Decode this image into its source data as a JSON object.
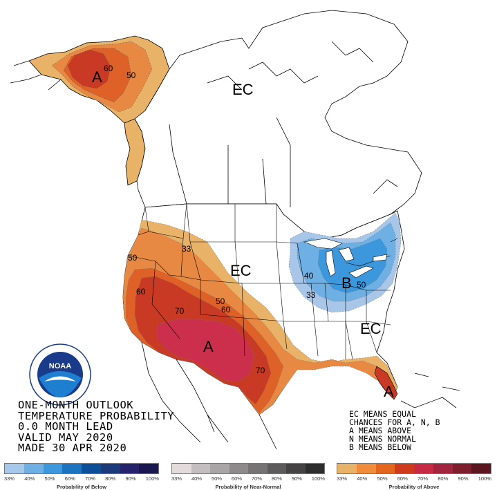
{
  "title_lines": [
    "ONE-MONTH OUTLOOK",
    "TEMPERATURE PROBABILITY",
    "0.0 MONTH LEAD",
    "VALID MAY 2020",
    "MADE 30 APR 2020"
  ],
  "legend_notes": [
    "EC MEANS EQUAL",
    "CHANCES FOR A, N, B",
    "A MEANS ABOVE",
    "N MEANS NORMAL",
    "B MEANS BELOW"
  ],
  "map_labels": {
    "alaska_A": "A",
    "alaska_60": "60",
    "alaska_50": "50",
    "canada_EC": "EC",
    "plains_EC": "EC",
    "southeast_EC": "EC",
    "west_33": "33",
    "west_50": "50",
    "west_60": "60",
    "west_70": "70",
    "rockies_50": "50",
    "rockies_60": "60",
    "southwest_A": "A",
    "texas_70": "70",
    "florida_A": "A",
    "lakes_40": "40",
    "lakes_33": "33",
    "lakes_B": "B",
    "lakes_50": "50"
  },
  "scales": [
    {
      "caption": "Probability of Below",
      "ticks": [
        "33%",
        "40%",
        "50%",
        "60%",
        "70%",
        "80%",
        "90%",
        "100%"
      ],
      "colors": [
        "#a6c8ea",
        "#6fb0e4",
        "#3d97dc",
        "#1c73c0",
        "#0a4f98",
        "#1b3a7a",
        "#26226b",
        "#1a1650"
      ]
    },
    {
      "caption": "Probability of Near-Normal",
      "ticks": [
        "33%",
        "40%",
        "50%",
        "60%",
        "70%",
        "80%",
        "90%",
        "100%"
      ],
      "colors": [
        "#e2dadb",
        "#c4bdbf",
        "#a9a4a6",
        "#8e8a8c",
        "#767374",
        "#5d5b5c",
        "#454344",
        "#2e2d2e"
      ]
    },
    {
      "caption": "Probability of Above",
      "ticks": [
        "33%",
        "40%",
        "50%",
        "60%",
        "70%",
        "80%",
        "90%",
        "100%"
      ],
      "colors": [
        "#e8b268",
        "#f08c3c",
        "#e4651e",
        "#cf3a1c",
        "#c72a43",
        "#a1253e",
        "#7f1f2e",
        "#5c1620"
      ]
    }
  ],
  "colors": {
    "above_33": "#e8b268",
    "above_40": "#e78942",
    "above_50": "#de6128",
    "above_60": "#c93a24",
    "above_70": "#cb2f4b",
    "below_33": "#a8c6e8",
    "below_40": "#6fb0e4",
    "below_50": "#3d97dc"
  },
  "logo_text": "NOAA"
}
